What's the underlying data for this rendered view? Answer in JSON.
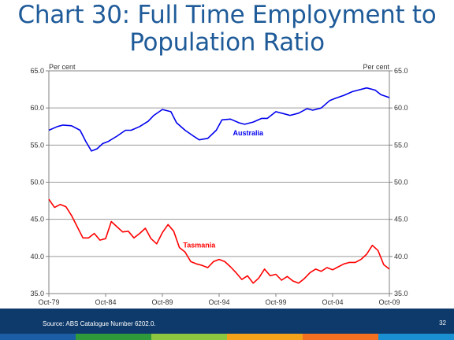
{
  "slide": {
    "title_line1": "Chart 30: Full Time Employment to",
    "title_line2": "Population Ratio",
    "source": "Source: ABS Catalogue Number 6202.0.",
    "page_number": "32"
  },
  "colors": {
    "title": "#1f5b99",
    "footer": "#0e3a6b",
    "stripes": [
      "#1b5ea6",
      "#2e9a3a",
      "#8dc63f",
      "#f5a21b",
      "#f37021",
      "#1a8fd1"
    ]
  },
  "chart_data": {
    "type": "line",
    "ylim": [
      35,
      65
    ],
    "yticks": [
      35,
      40,
      45,
      50,
      55,
      60,
      65
    ],
    "ytick_labels": [
      "35.0",
      "40.0",
      "45.0",
      "50.0",
      "55.0",
      "60.0",
      "65.0"
    ],
    "xlim": [
      1979.75,
      2009.75
    ],
    "xticks": [
      1979.75,
      1984.75,
      1989.75,
      1994.75,
      1999.75,
      2004.75,
      2009.75
    ],
    "xtick_labels": [
      "Oct-79",
      "Oct-84",
      "Oct-89",
      "Oct-94",
      "Oct-99",
      "Oct-04",
      "Oct-09"
    ],
    "left_unit": "Per cent",
    "right_unit": "Per cent",
    "grid": "horizontal",
    "series": [
      {
        "name": "Australia",
        "color": "#0000ee",
        "x": [
          1979.75,
          1980.5,
          1981.0,
          1981.75,
          1982.5,
          1983.0,
          1983.5,
          1984.0,
          1984.5,
          1985.0,
          1985.75,
          1986.5,
          1987.0,
          1987.75,
          1988.5,
          1989.0,
          1989.75,
          1990.5,
          1991.0,
          1991.75,
          1992.5,
          1993.0,
          1993.75,
          1994.5,
          1995.0,
          1995.75,
          1996.5,
          1997.0,
          1997.75,
          1998.5,
          1999.0,
          1999.75,
          2000.5,
          2001.0,
          2001.75,
          2002.5,
          2003.0,
          2003.75,
          2004.5,
          2005.0,
          2005.75,
          2006.5,
          2007.0,
          2007.75,
          2008.5,
          2009.0,
          2009.75
        ],
        "values": [
          57.0,
          57.5,
          57.7,
          57.6,
          57.0,
          55.5,
          54.2,
          54.5,
          55.2,
          55.5,
          56.2,
          57.0,
          57.0,
          57.5,
          58.2,
          59.0,
          59.8,
          59.5,
          58.0,
          57.0,
          56.2,
          55.7,
          55.9,
          57.0,
          58.4,
          58.5,
          58.0,
          57.8,
          58.1,
          58.6,
          58.6,
          59.5,
          59.2,
          59.0,
          59.3,
          59.9,
          59.7,
          60.0,
          61.0,
          61.3,
          61.7,
          62.2,
          62.4,
          62.7,
          62.4,
          61.8,
          61.4
        ]
      },
      {
        "name": "Tasmania",
        "color": "#ff0000",
        "x": [
          1979.75,
          1980.25,
          1980.75,
          1981.25,
          1981.75,
          1982.25,
          1982.75,
          1983.25,
          1983.75,
          1984.25,
          1984.75,
          1985.25,
          1985.75,
          1986.25,
          1986.75,
          1987.25,
          1987.75,
          1988.25,
          1988.75,
          1989.25,
          1989.75,
          1990.25,
          1990.75,
          1991.25,
          1991.75,
          1992.25,
          1992.75,
          1993.25,
          1993.75,
          1994.25,
          1994.75,
          1995.25,
          1995.75,
          1996.25,
          1996.75,
          1997.25,
          1997.75,
          1998.25,
          1998.75,
          1999.25,
          1999.75,
          2000.25,
          2000.75,
          2001.25,
          2001.75,
          2002.25,
          2002.75,
          2003.25,
          2003.75,
          2004.25,
          2004.75,
          2005.25,
          2005.75,
          2006.25,
          2006.75,
          2007.25,
          2007.75,
          2008.25,
          2008.75,
          2009.25,
          2009.75
        ],
        "values": [
          47.7,
          46.6,
          47.0,
          46.7,
          45.5,
          44.0,
          42.5,
          42.5,
          43.1,
          42.2,
          42.4,
          44.7,
          44.0,
          43.3,
          43.4,
          42.5,
          43.1,
          43.8,
          42.4,
          41.7,
          43.2,
          44.3,
          43.4,
          41.2,
          40.6,
          39.3,
          39.0,
          38.8,
          38.5,
          39.3,
          39.6,
          39.3,
          38.6,
          37.8,
          36.9,
          37.4,
          36.4,
          37.1,
          38.3,
          37.4,
          37.6,
          36.8,
          37.3,
          36.7,
          36.4,
          37.0,
          37.8,
          38.3,
          38.0,
          38.5,
          38.2,
          38.6,
          39.0,
          39.2,
          39.2,
          39.6,
          40.3,
          41.5,
          40.8,
          38.9,
          38.3
        ]
      }
    ],
    "labels": [
      {
        "text": "Australia",
        "series": "Australia",
        "x": 1997.3,
        "y": 56.3
      },
      {
        "text": "Tasmania",
        "series": "Tasmania",
        "x": 1993.0,
        "y": 41.2
      }
    ]
  }
}
